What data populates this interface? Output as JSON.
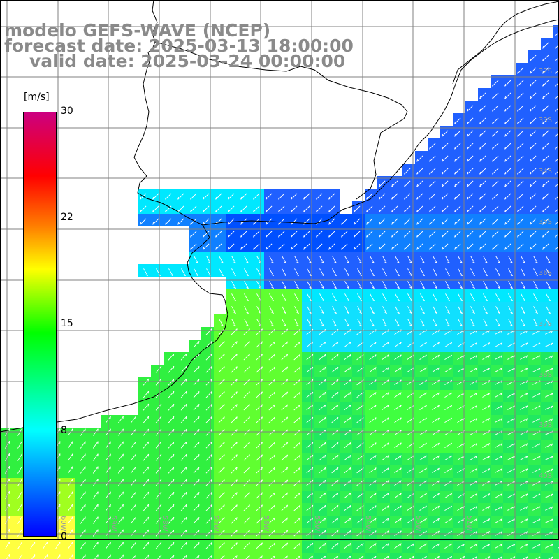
{
  "title": {
    "line1": "modelo GEFS-WAVE (NCEP)",
    "line2": "forecast date: 2025-03-13 18:00:00",
    "line3": "valid date: 2025-03-24 00:00:00"
  },
  "colorbar": {
    "unit": "[m/s]",
    "ticks": [
      "30",
      "22",
      "15",
      "8",
      "0"
    ],
    "colors": [
      "#0000ff",
      "#00ffff",
      "#00ff00",
      "#ffff00",
      "#ff8000",
      "#ff0000",
      "#cc0080"
    ]
  },
  "lat_labels": [
    "32S",
    "33S",
    "34S",
    "35S",
    "36S",
    "37S",
    "38S",
    "39S",
    "40S"
  ],
  "lon_labels": [
    "60W",
    "59W",
    "58W",
    "57W",
    "56W",
    "55W",
    "54W",
    "53W",
    "52W"
  ],
  "colors": {
    "land": "#ffffff",
    "grid": "#808080",
    "coast": "#000000",
    "arrow": "#ffffff",
    "title": "#8a8a8a"
  }
}
